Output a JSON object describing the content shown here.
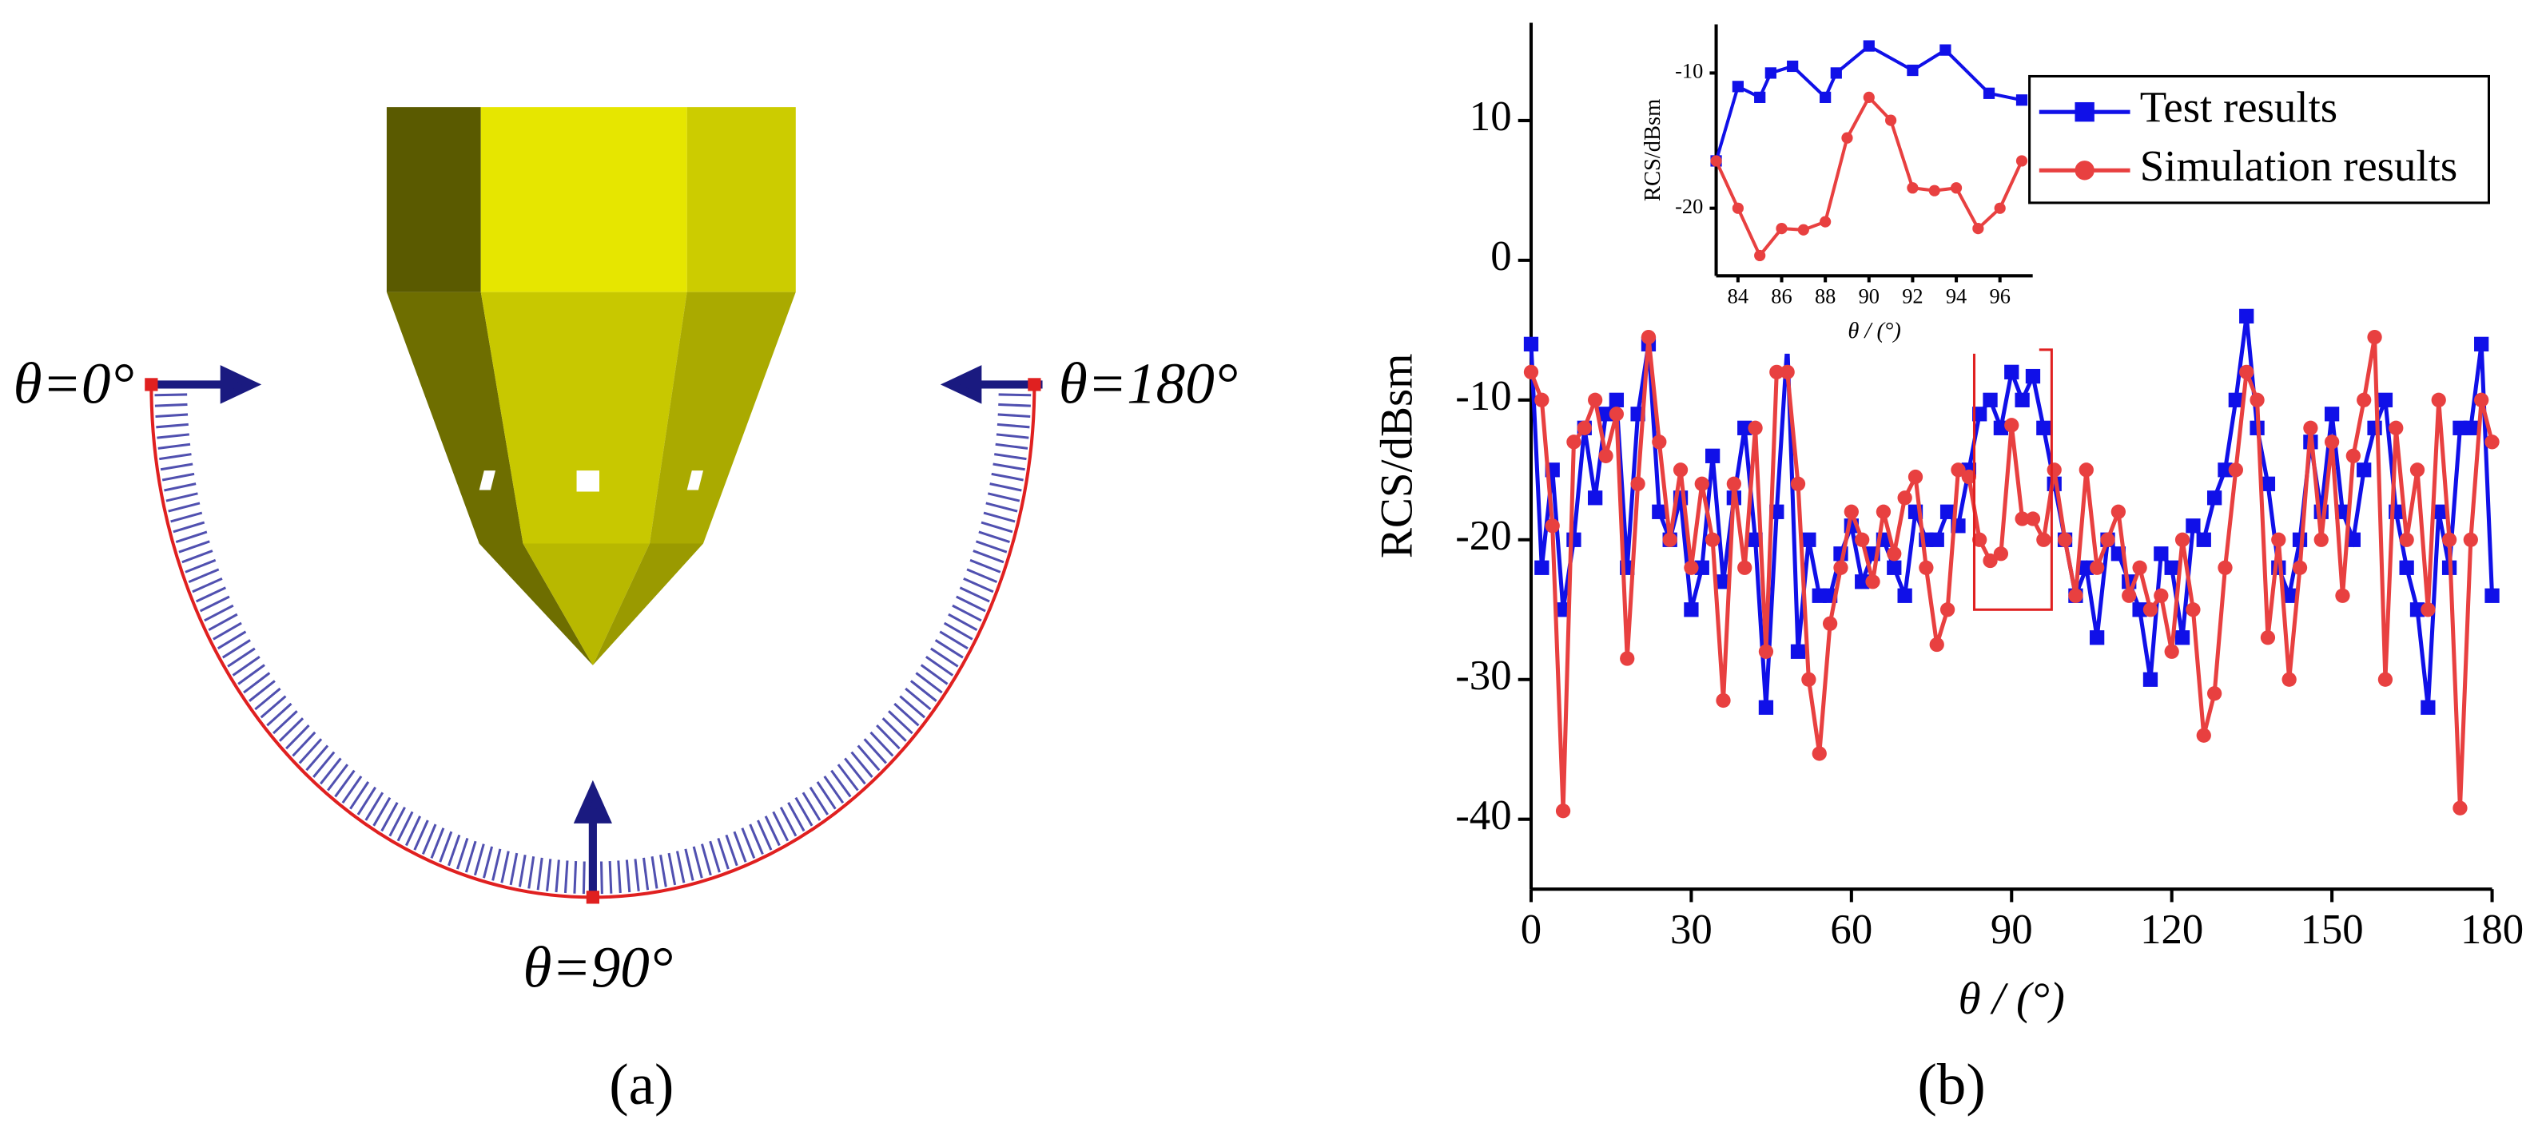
{
  "diagram": {
    "labels": [
      "θ=0°",
      "θ=180°",
      "θ=90°"
    ],
    "caption": "(a)"
  },
  "chart_data": [
    {
      "type": "line",
      "caption": "(b)",
      "xlabel": "θ / (°)",
      "ylabel": "RCS/dBsm",
      "xlim": [
        0,
        180
      ],
      "xticks": [
        0,
        30,
        60,
        90,
        120,
        150,
        180
      ],
      "ylim": [
        -45,
        17
      ],
      "yticks": [
        -40,
        -30,
        -20,
        -10,
        0,
        10
      ],
      "legend": "upper right",
      "x": [
        0,
        2,
        4,
        6,
        8,
        10,
        12,
        14,
        16,
        18,
        20,
        22,
        24,
        26,
        28,
        30,
        32,
        34,
        36,
        38,
        40,
        42,
        44,
        46,
        48,
        50,
        52,
        54,
        56,
        58,
        60,
        62,
        64,
        66,
        68,
        70,
        72,
        74,
        76,
        78,
        80,
        82,
        84,
        86,
        88,
        90,
        92,
        94,
        96,
        98,
        100,
        102,
        104,
        106,
        108,
        110,
        112,
        114,
        116,
        118,
        120,
        122,
        124,
        126,
        128,
        130,
        132,
        134,
        136,
        138,
        140,
        142,
        144,
        146,
        148,
        150,
        152,
        154,
        156,
        158,
        160,
        162,
        164,
        166,
        168,
        170,
        172,
        174,
        176,
        178,
        180
      ],
      "series": [
        {
          "name": "Test results",
          "color": "#1010e8",
          "marker": "square",
          "values": [
            -6,
            -22,
            -15,
            -25,
            -20,
            -12,
            -17,
            -11,
            -10,
            -22,
            -11,
            -6,
            -18,
            -20,
            -17,
            -25,
            -22,
            -14,
            -23,
            -17,
            -12,
            -20,
            -32,
            -18,
            -6,
            -28,
            -20,
            -24,
            -24,
            -21,
            -19,
            -23,
            -21,
            -20,
            -22,
            -24,
            -18,
            -20,
            -20,
            -18,
            -19,
            -15,
            -11,
            -10,
            -12,
            -8,
            -10,
            -8.3,
            -12,
            -16,
            -20,
            -24,
            -22,
            -27,
            -20,
            -21,
            -23,
            -25,
            -30,
            -21,
            -22,
            -27,
            -19,
            -20,
            -17,
            -15,
            -10,
            -4,
            -12,
            -16,
            -22,
            -24,
            -20,
            -13,
            -18,
            -11,
            -18,
            -20,
            -15,
            -12,
            -10,
            -18,
            -22,
            -25,
            -32,
            -18,
            -22,
            -12,
            -12,
            -6,
            -24
          ]
        },
        {
          "name": "Simulation results",
          "color": "#e84040",
          "marker": "circle",
          "values": [
            -8,
            -10,
            -19,
            -39.4,
            -13,
            -12,
            -10,
            -14,
            -11,
            -28.5,
            -16,
            -5.5,
            -13,
            -20,
            -15,
            -22,
            -16,
            -20,
            -31.5,
            -16,
            -22,
            -12,
            -28,
            -8,
            -8,
            -16,
            -30,
            -35.3,
            -26,
            -22,
            -18,
            -20,
            -23,
            -18,
            -21,
            -17,
            -15.5,
            -22,
            -27.5,
            -25,
            -15,
            -15.5,
            -20,
            -21.5,
            -21,
            -11.8,
            -18.5,
            -18.5,
            -20,
            -15,
            -20,
            -24,
            -15,
            -22,
            -20,
            -18,
            -24,
            -22,
            -25,
            -24,
            -28,
            -20,
            -25,
            -34,
            -31,
            -22,
            -15,
            -8,
            -10,
            -27,
            -20,
            -30,
            -22,
            -12,
            -20,
            -13,
            -24,
            -14,
            -10,
            -5.5,
            -30,
            -12,
            -20,
            -15,
            -25,
            -10,
            -20,
            -39.2,
            -20,
            -10,
            -13
          ]
        }
      ]
    },
    {
      "type": "line",
      "xlabel": "θ / (°)",
      "ylabel": "RCS/dBsm",
      "xlim": [
        83,
        97.5
      ],
      "xticks": [
        84,
        86,
        88,
        90,
        92,
        94,
        96
      ],
      "ylim": [
        -25,
        -6.4
      ],
      "yticks": [
        -10,
        -20
      ],
      "series": [
        {
          "color": "#1010e8",
          "marker": "square",
          "x": [
            83,
            84,
            85,
            85.5,
            86.5,
            88,
            88.5,
            90,
            92,
            93.5,
            95.5,
            97
          ],
          "values": [
            -16.5,
            -11,
            -11.8,
            -10,
            -9.5,
            -11.8,
            -10,
            -8,
            -9.8,
            -8.3,
            -11.5,
            -12
          ]
        },
        {
          "color": "#e84040",
          "marker": "circle",
          "x": [
            83,
            84,
            85,
            86,
            87,
            88,
            89,
            90,
            91,
            92,
            93,
            94,
            95,
            96,
            97
          ],
          "values": [
            -16.5,
            -20,
            -23.5,
            -21.5,
            -21.6,
            -21,
            -14.8,
            -11.8,
            -13.5,
            -18.5,
            -18.7,
            -18.5,
            -21.5,
            -20,
            -16.5
          ]
        }
      ]
    }
  ]
}
